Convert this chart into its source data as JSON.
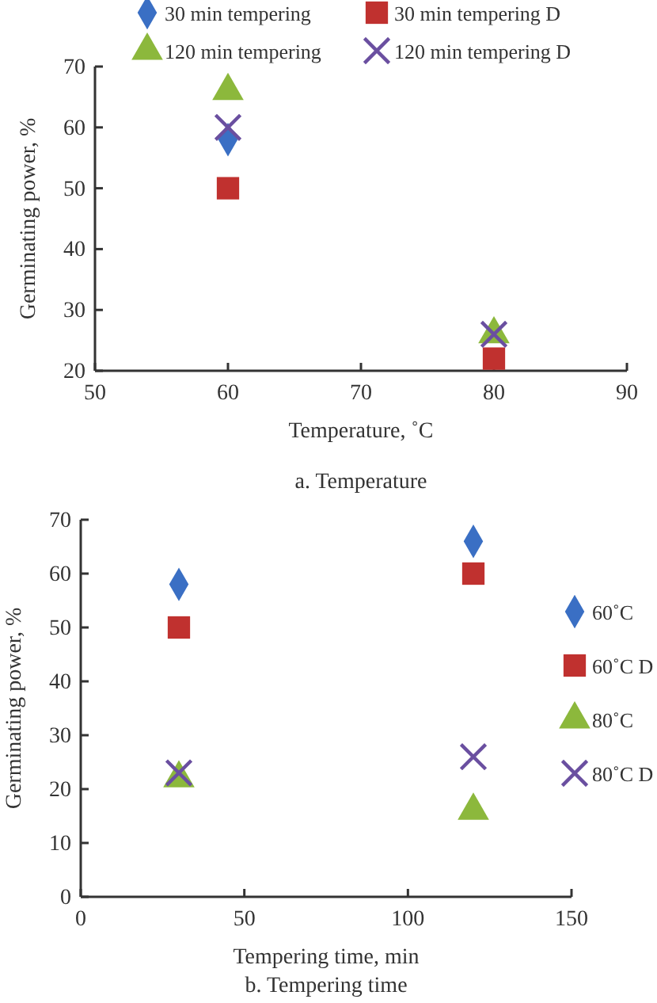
{
  "chart_data": [
    {
      "type": "scatter",
      "title": "a. Temperature",
      "xlabel": "Temperature, ˚C",
      "ylabel": "Germinating power, %",
      "x": [
        60,
        80
      ],
      "xlim": [
        50,
        90
      ],
      "xticks": [
        50,
        60,
        70,
        80,
        90
      ],
      "ylim": [
        20,
        70
      ],
      "yticks": [
        20,
        30,
        40,
        50,
        60,
        70
      ],
      "legend": "top",
      "grid": false,
      "series": [
        {
          "name": "30 min tempering",
          "color": "#3a6fc4",
          "marker": "diamond",
          "values": [
            58,
            null
          ]
        },
        {
          "name": "30 min tempering D",
          "color": "#c0312f",
          "marker": "square",
          "values": [
            50,
            22
          ]
        },
        {
          "name": "120 min tempering",
          "color": "#8cb83c",
          "marker": "triangle",
          "values": [
            66,
            26
          ]
        },
        {
          "name": "120 min tempering D",
          "color": "#6a4fa0",
          "marker": "cross",
          "values": [
            60,
            26
          ]
        }
      ]
    },
    {
      "type": "scatter",
      "title": "b. Tempering time",
      "xlabel": "Tempering time, min",
      "ylabel": "Germinating power, %",
      "x": [
        30,
        120
      ],
      "xlim": [
        0,
        150
      ],
      "xticks": [
        0,
        50,
        100,
        150
      ],
      "ylim": [
        0,
        70
      ],
      "yticks": [
        0,
        10,
        20,
        30,
        40,
        50,
        60,
        70
      ],
      "legend": "right",
      "grid": false,
      "series": [
        {
          "name": "60˚C",
          "color": "#3a6fc4",
          "marker": "diamond",
          "values": [
            58,
            66
          ]
        },
        {
          "name": "60˚C D",
          "color": "#c0312f",
          "marker": "square",
          "values": [
            50,
            60
          ]
        },
        {
          "name": "80˚C",
          "color": "#8cb83c",
          "marker": "triangle",
          "values": [
            22,
            16
          ]
        },
        {
          "name": "80˚C D",
          "color": "#6a4fa0",
          "marker": "cross",
          "values": [
            23,
            26
          ]
        }
      ]
    }
  ]
}
